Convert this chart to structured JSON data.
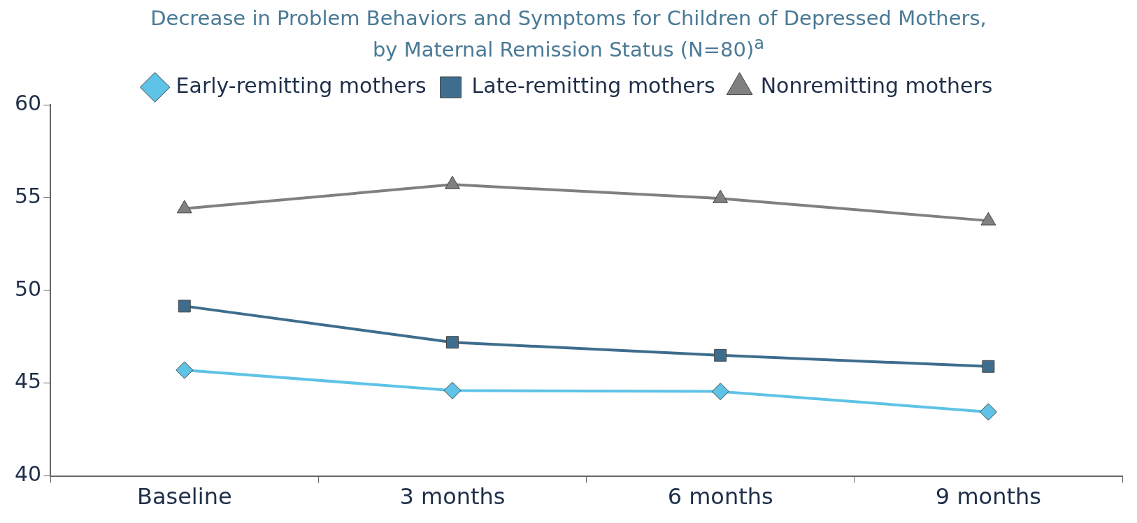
{
  "chart_data": {
    "type": "line",
    "title": "Decrease in Problem Behaviors and Symptoms for Children of Depressed Mothers, by Maternal Remission Status (N=80)$^{a}$",
    "categories": [
      "Baseline",
      "3 months",
      "6 months",
      "9 months"
    ],
    "series": [
      {
        "name": "Early-remitting mothers",
        "color": "#5ec3e6",
        "marker": "diamond",
        "values": [
          45.7,
          44.6,
          44.55,
          43.45
        ]
      },
      {
        "name": "Late-remitting mothers",
        "color": "#3e6d8d",
        "marker": "square",
        "values": [
          49.15,
          47.2,
          46.5,
          45.9
        ]
      },
      {
        "name": "Nonremitting mothers",
        "color": "#808080",
        "marker": "triangle",
        "values": [
          54.4,
          55.7,
          54.95,
          53.75
        ]
      }
    ],
    "ylim": [
      40,
      60
    ],
    "yticks": [
      40,
      45,
      50,
      55,
      60
    ],
    "grid": false,
    "legend": "top",
    "line_style": "solid"
  }
}
